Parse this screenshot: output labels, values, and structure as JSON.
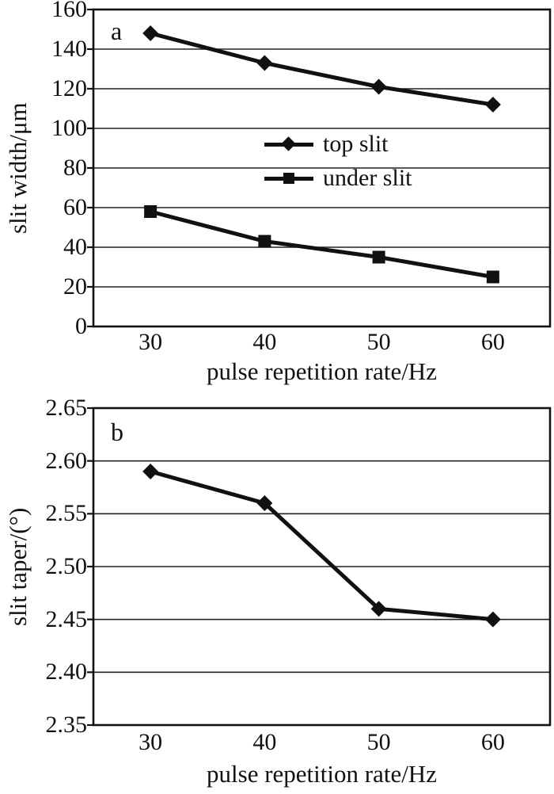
{
  "figure": {
    "background": "#ffffff",
    "ink": "#111111",
    "grid_color": "#222222"
  },
  "chart_data": [
    {
      "type": "line",
      "panel_label": "a",
      "xlabel": "pulse repetition rate/Hz",
      "ylabel": "slit width/μm",
      "x": [
        30,
        40,
        50,
        60
      ],
      "xtick_labels": [
        "30",
        "40",
        "50",
        "60"
      ],
      "xlim": [
        25,
        65
      ],
      "ylim": [
        0,
        160
      ],
      "ytick_values": [
        0,
        20,
        40,
        60,
        80,
        100,
        120,
        140,
        160
      ],
      "ytick_labels": [
        "0",
        "20",
        "40",
        "60",
        "80",
        "100",
        "120",
        "140",
        "160"
      ],
      "grid": "horizontal",
      "legend_position": "inside-center",
      "series": [
        {
          "name": "top slit",
          "marker": "diamond",
          "values": [
            148,
            133,
            121,
            112
          ]
        },
        {
          "name": "under slit",
          "marker": "square",
          "values": [
            58,
            43,
            35,
            25
          ]
        }
      ],
      "legend": {
        "entries": [
          {
            "label": "top slit",
            "marker": "diamond"
          },
          {
            "label": "under slit",
            "marker": "square"
          }
        ]
      }
    },
    {
      "type": "line",
      "panel_label": "b",
      "xlabel": "pulse repetition rate/Hz",
      "ylabel": "slit taper/(°)",
      "x": [
        30,
        40,
        50,
        60
      ],
      "xtick_labels": [
        "30",
        "40",
        "50",
        "60"
      ],
      "xlim": [
        25,
        65
      ],
      "ylim": [
        2.35,
        2.65
      ],
      "ytick_values": [
        2.35,
        2.4,
        2.45,
        2.5,
        2.55,
        2.6,
        2.65
      ],
      "ytick_labels": [
        "2.35",
        "2.40",
        "2.45",
        "2.50",
        "2.55",
        "2.60",
        "2.65"
      ],
      "grid": "horizontal",
      "series": [
        {
          "name": "slit taper",
          "marker": "diamond",
          "values": [
            2.59,
            2.56,
            2.46,
            2.45
          ]
        }
      ]
    }
  ]
}
